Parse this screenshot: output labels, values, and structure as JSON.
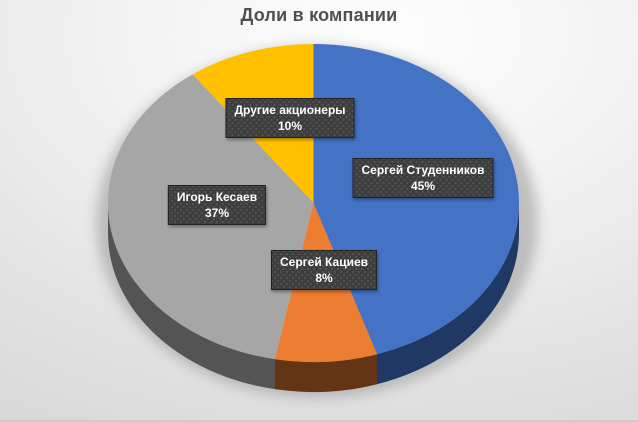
{
  "title": "Доли в компании",
  "title_color": "#4F4F4F",
  "chart_data": {
    "type": "pie",
    "style": "3d",
    "title": "Доли в компании",
    "legend": "none",
    "start_angle_deg": 0,
    "direction": "clockwise",
    "total_pct": 100,
    "slices": [
      {
        "label": "Сергей Студенников",
        "value_pct": 45,
        "pct_text": "45%",
        "color": "#4472C4",
        "side_color": "#1F3864"
      },
      {
        "label": "Сергей Кациев",
        "value_pct": 8,
        "pct_text": "8%",
        "color": "#ED7D31",
        "side_color": "#643514"
      },
      {
        "label": "Игорь Кесаев",
        "value_pct": 37,
        "pct_text": "37%",
        "color": "#A6A6A6",
        "side_color": "#545454"
      },
      {
        "label": "Другие акционеры",
        "value_pct": 10,
        "pct_text": "10%",
        "color": "#FFC000",
        "side_color": "#7F6000"
      }
    ],
    "label_box_style": {
      "bg": "#3E3E3E",
      "text_color": "#FFFFFF",
      "border": "#232323"
    }
  }
}
